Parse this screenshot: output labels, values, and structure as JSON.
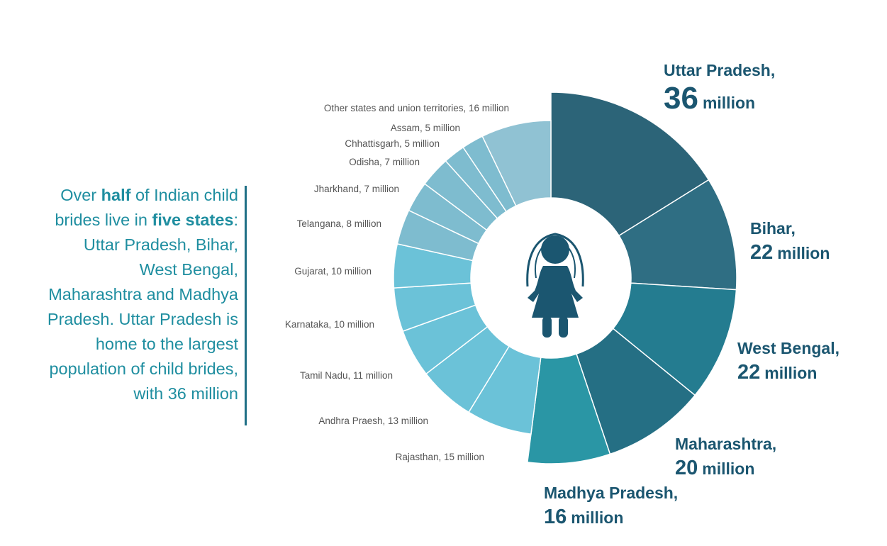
{
  "callout": {
    "part1": "Over ",
    "bold1": "half",
    "part2": " of Indian child brides live in ",
    "bold2": "five states",
    "part3": ": Uttar Pradesh, Bihar, West Bengal, Maharashtra and Madhya Pradesh. Uttar Pradesh is home to the largest population of child brides, with 36 million"
  },
  "chart_data": {
    "type": "pie",
    "subtype": "donut",
    "unit": "million",
    "slices": [
      {
        "name": "Uttar Pradesh",
        "value": 36,
        "value_text": "36",
        "unit_text": "million",
        "label": "Uttar Pradesh, 36 million",
        "color": "#2c6478",
        "highlight": true
      },
      {
        "name": "Bihar",
        "value": 22,
        "value_text": "22",
        "unit_text": "million",
        "label": "Bihar, 22 million",
        "color": "#2f6e83",
        "highlight": true
      },
      {
        "name": "West Bengal",
        "value": 22,
        "value_text": "22",
        "unit_text": "million",
        "label": "West Bengal, 22 million",
        "color": "#247c90",
        "highlight": true
      },
      {
        "name": "Maharashtra",
        "value": 20,
        "value_text": "20",
        "unit_text": "million",
        "label": "Maharashtra, 20 million",
        "color": "#256f84",
        "highlight": true
      },
      {
        "name": "Madhya Pradesh",
        "value": 16,
        "value_text": "16",
        "unit_text": "million",
        "label": "Madhya Pradesh, 16 million",
        "color": "#2a96a5",
        "highlight": true
      },
      {
        "name": "Rajasthan",
        "value": 15,
        "label": "Rajasthan, 15 million",
        "color": "#6bc2d8",
        "highlight": false
      },
      {
        "name": "Andhra Praesh",
        "value": 13,
        "label": "Andhra Praesh, 13 million",
        "color": "#6bc2d8",
        "highlight": false
      },
      {
        "name": "Tamil Nadu",
        "value": 11,
        "label": "Tamil Nadu, 11 million",
        "color": "#6bc2d8",
        "highlight": false
      },
      {
        "name": "Karnataka",
        "value": 10,
        "label": "Karnataka, 10 million",
        "color": "#6bc2d8",
        "highlight": false
      },
      {
        "name": "Gujarat",
        "value": 10,
        "label": "Gujarat, 10 million",
        "color": "#6bc2d8",
        "highlight": false
      },
      {
        "name": "Telangana",
        "value": 8,
        "label": "Telangana, 8 million",
        "color": "#7ebccf",
        "highlight": false
      },
      {
        "name": "Jharkhand",
        "value": 7,
        "label": "Jharkhand, 7 million",
        "color": "#7ebccf",
        "highlight": false
      },
      {
        "name": "Odisha",
        "value": 7,
        "label": "Odisha, 7 million",
        "color": "#7ebccf",
        "highlight": false
      },
      {
        "name": "Chhattisgarh",
        "value": 5,
        "label": "Chhattisgarh, 5 million",
        "color": "#7ebccf",
        "highlight": false
      },
      {
        "name": "Assam",
        "value": 5,
        "label": "Assam, 5 million",
        "color": "#7ebccf",
        "highlight": false
      },
      {
        "name": "Other states and union territories",
        "value": 16,
        "label": "Other states and union territories, 16 million",
        "color": "#90c2d3",
        "highlight": false
      }
    ],
    "legend": "none",
    "center_icon": "girl-bride-icon",
    "highlight_text_color": "#1b5670",
    "label_text_color": "#555555"
  }
}
